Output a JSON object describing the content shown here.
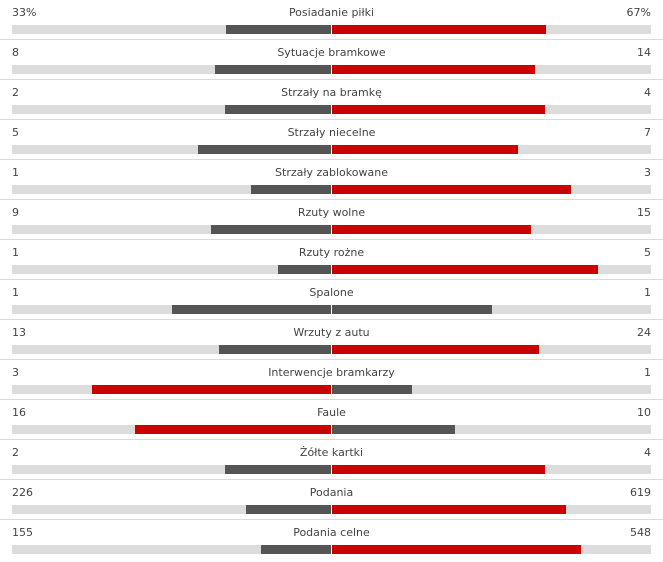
{
  "colors": {
    "leader": "#cc0000",
    "trailer": "#555555",
    "track": "#dcdcdc"
  },
  "stats": [
    {
      "label": "Posiadanie piłki",
      "home": "33%",
      "away": "67%",
      "home_fill": 0.33,
      "away_fill": 0.67
    },
    {
      "label": "Sytuacje bramkowe",
      "home": "8",
      "away": "14",
      "home_fill": 0.364,
      "away_fill": 0.636
    },
    {
      "label": "Strzały na bramkę",
      "home": "2",
      "away": "4",
      "home_fill": 0.333,
      "away_fill": 0.667
    },
    {
      "label": "Strzały niecelne",
      "home": "5",
      "away": "7",
      "home_fill": 0.417,
      "away_fill": 0.583
    },
    {
      "label": "Strzały zablokowane",
      "home": "1",
      "away": "3",
      "home_fill": 0.25,
      "away_fill": 0.75
    },
    {
      "label": "Rzuty wolne",
      "home": "9",
      "away": "15",
      "home_fill": 0.375,
      "away_fill": 0.625
    },
    {
      "label": "Rzuty rożne",
      "home": "1",
      "away": "5",
      "home_fill": 0.167,
      "away_fill": 0.833
    },
    {
      "label": "Spalone",
      "home": "1",
      "away": "1",
      "home_fill": 0.5,
      "away_fill": 0.5
    },
    {
      "label": "Wrzuty z autu",
      "home": "13",
      "away": "24",
      "home_fill": 0.351,
      "away_fill": 0.649
    },
    {
      "label": "Interwencje bramkarzy",
      "home": "3",
      "away": "1",
      "home_fill": 0.75,
      "away_fill": 0.25
    },
    {
      "label": "Faule",
      "home": "16",
      "away": "10",
      "home_fill": 0.615,
      "away_fill": 0.385
    },
    {
      "label": "Żółte kartki",
      "home": "2",
      "away": "4",
      "home_fill": 0.333,
      "away_fill": 0.667
    },
    {
      "label": "Podania",
      "home": "226",
      "away": "619",
      "home_fill": 0.267,
      "away_fill": 0.733
    },
    {
      "label": "Podania celne",
      "home": "155",
      "away": "548",
      "home_fill": 0.22,
      "away_fill": 0.78
    }
  ]
}
